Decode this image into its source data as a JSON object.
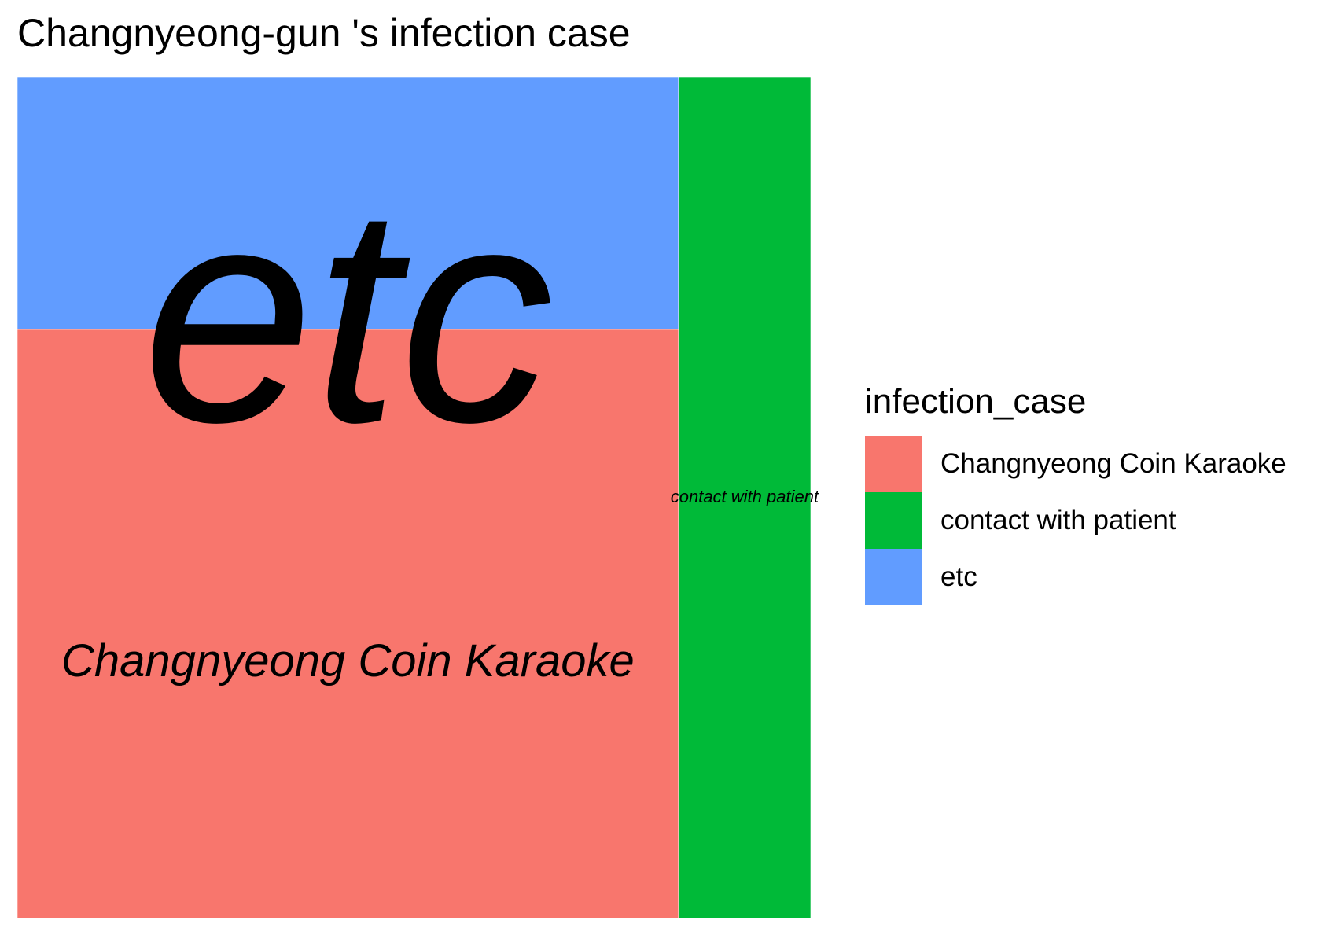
{
  "chart_data": {
    "type": "treemap",
    "title": "Changnyeong-gun 's infection case",
    "categories": [
      "Changnyeong Coin Karaoke",
      "contact with patient",
      "etc"
    ],
    "values": [
      7,
      2,
      3
    ],
    "colors": {
      "Changnyeong Coin Karaoke": "#F8766D",
      "contact with patient": "#00BA38",
      "etc": "#619CFF"
    },
    "legend": {
      "title": "infection_case",
      "placement": "right",
      "items": [
        {
          "label": "Changnyeong Coin Karaoke",
          "color": "#F8766D"
        },
        {
          "label": "contact with patient",
          "color": "#00BA38"
        },
        {
          "label": "etc",
          "color": "#619CFF"
        }
      ]
    }
  }
}
